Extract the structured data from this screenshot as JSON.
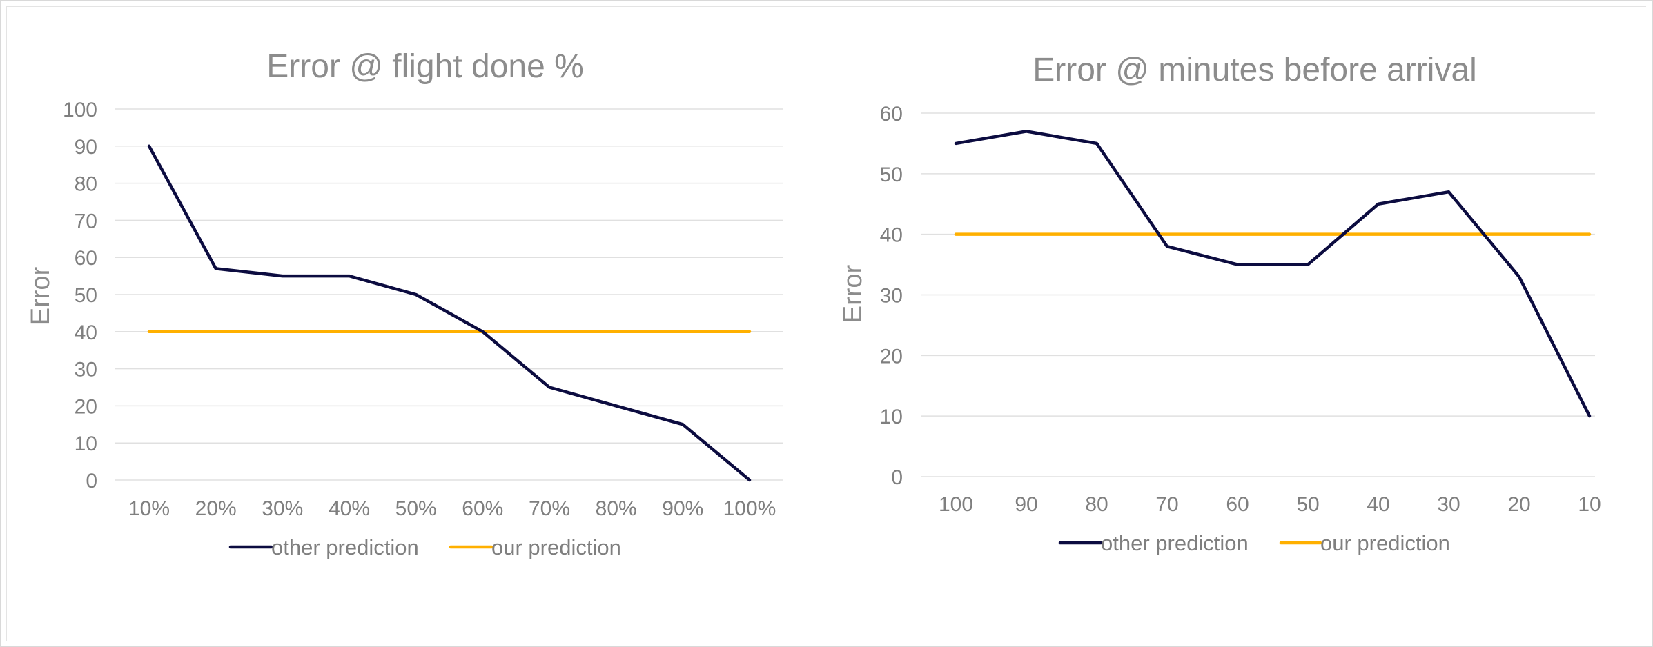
{
  "chart_data": [
    {
      "type": "line",
      "title": "Error @ flight done %",
      "xlabel": "",
      "ylabel": "Error",
      "categories": [
        "10%",
        "20%",
        "30%",
        "40%",
        "50%",
        "60%",
        "70%",
        "80%",
        "90%",
        "100%"
      ],
      "ylim": [
        0,
        100
      ],
      "yticks": [
        0,
        10,
        20,
        30,
        40,
        50,
        60,
        70,
        80,
        90,
        100
      ],
      "grid": true,
      "legend": "bottom",
      "series": [
        {
          "name": "other prediction",
          "color": "#0c0c40",
          "values": [
            90,
            57,
            55,
            55,
            50,
            40,
            25,
            20,
            15,
            0
          ]
        },
        {
          "name": "our prediction",
          "color": "#ffb000",
          "values": [
            40,
            40,
            40,
            40,
            40,
            40,
            40,
            40,
            40,
            40
          ]
        }
      ]
    },
    {
      "type": "line",
      "title": "Error @ minutes before arrival",
      "xlabel": "",
      "ylabel": "Error",
      "categories": [
        "100",
        "90",
        "80",
        "70",
        "60",
        "50",
        "40",
        "30",
        "20",
        "10"
      ],
      "ylim": [
        0,
        60
      ],
      "yticks": [
        0,
        10,
        20,
        30,
        40,
        50,
        60
      ],
      "grid": true,
      "legend": "bottom",
      "series": [
        {
          "name": "other prediction",
          "color": "#0c0c40",
          "values": [
            55,
            57,
            55,
            38,
            35,
            35,
            45,
            47,
            33,
            10
          ]
        },
        {
          "name": "our prediction",
          "color": "#ffb000",
          "values": [
            40,
            40,
            40,
            40,
            40,
            40,
            40,
            40,
            40,
            40
          ]
        }
      ]
    }
  ]
}
